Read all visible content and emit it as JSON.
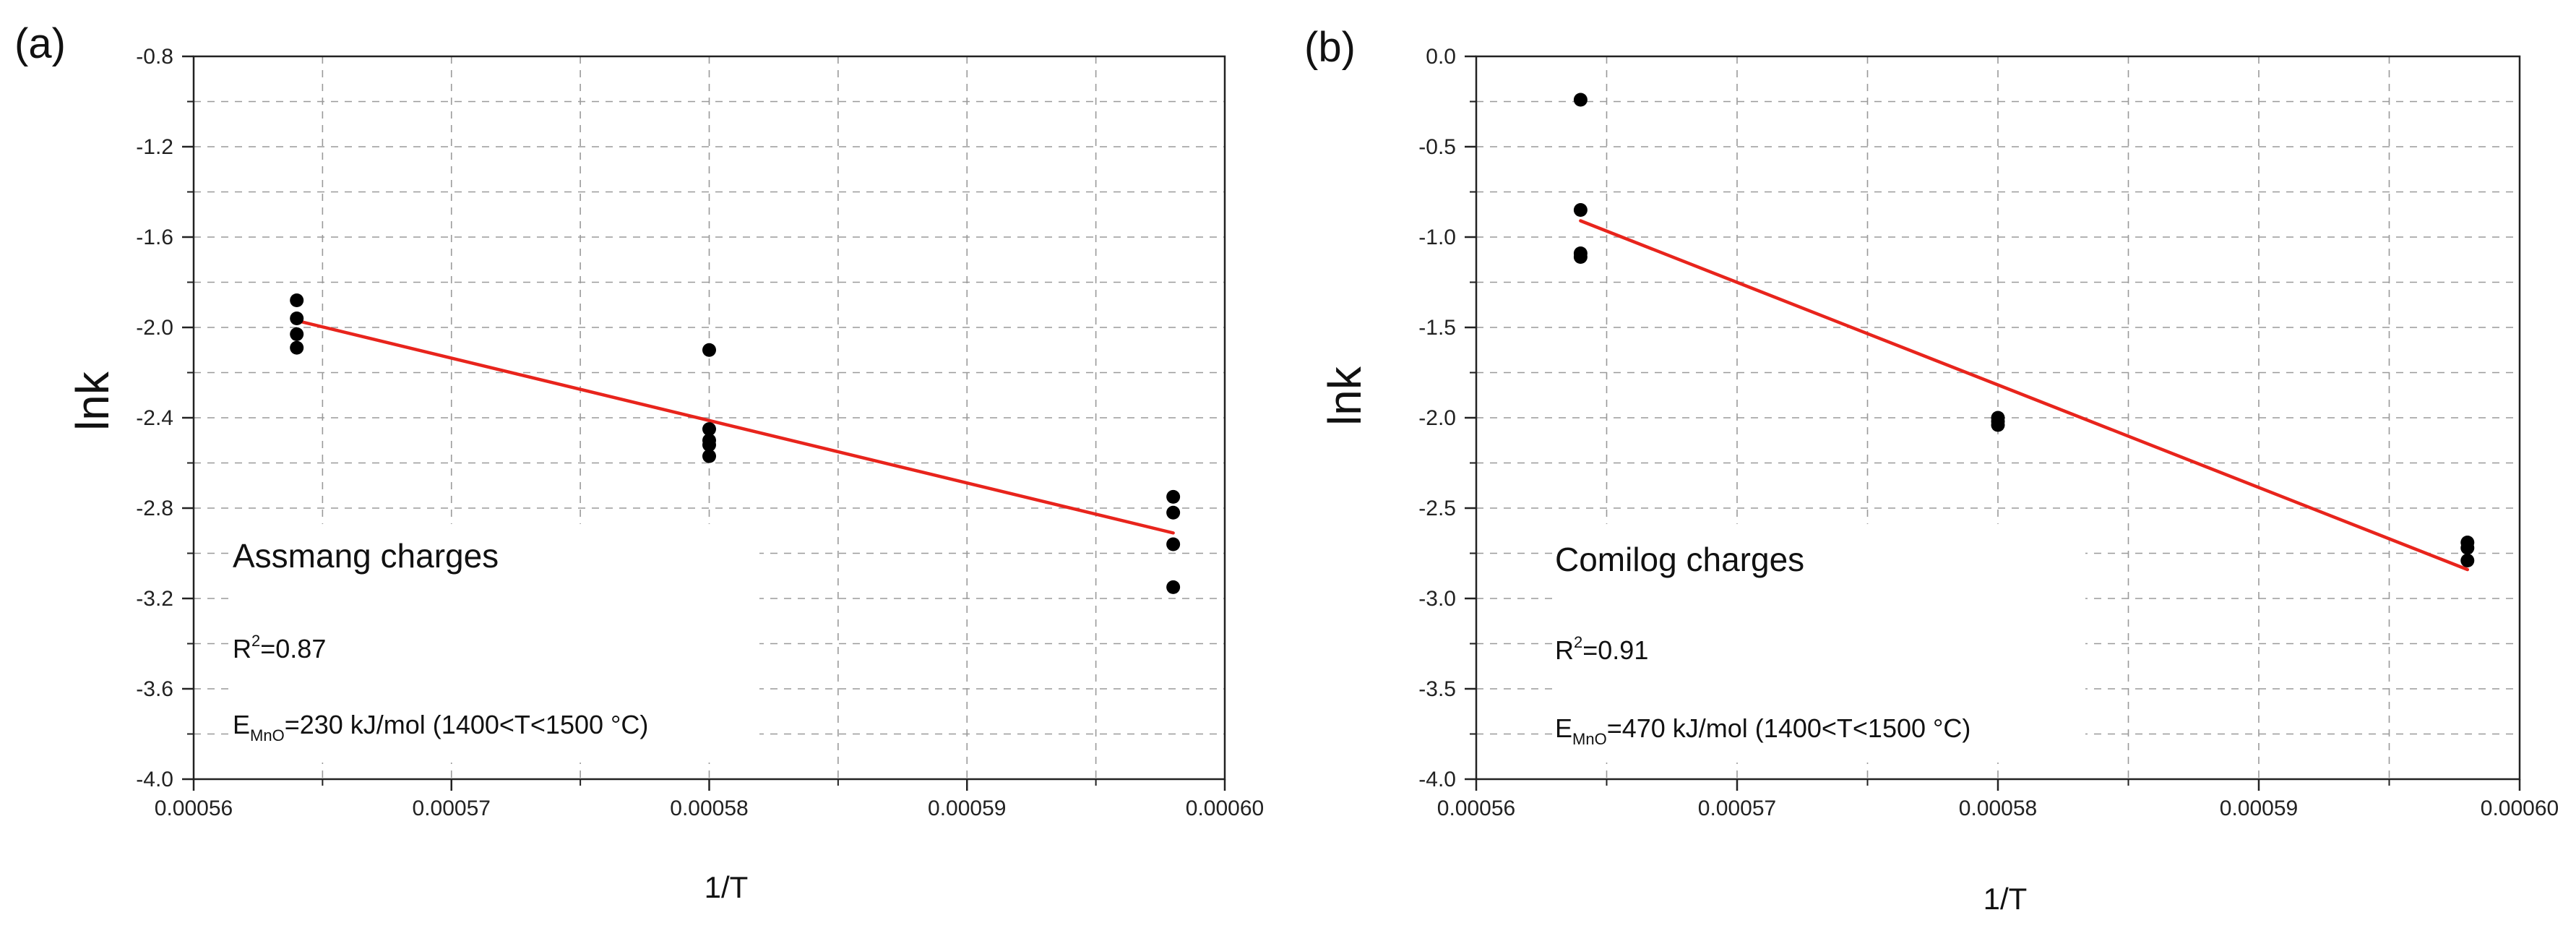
{
  "chart_data": [
    {
      "panel_label": "(a)",
      "type": "scatter",
      "title": "",
      "xlabel": "1/T",
      "ylabel": "lnk",
      "xlim": [
        0.00056,
        0.0006
      ],
      "ylim": [
        -4.0,
        -0.8
      ],
      "xticks": [
        "0.00056",
        "0.00057",
        "0.00058",
        "0.00059",
        "0.00060"
      ],
      "yticks": [
        "-0.8",
        "-1.2",
        "-1.6",
        "-2.0",
        "-2.4",
        "-2.8",
        "-3.2",
        "-3.6",
        "-4.0"
      ],
      "grid": true,
      "series": [
        {
          "name": "data",
          "color": "#000000",
          "x": [
            0.000564,
            0.000564,
            0.000564,
            0.000564,
            0.00058,
            0.00058,
            0.00058,
            0.00058,
            0.00058,
            0.000598,
            0.000598,
            0.000598,
            0.000598
          ],
          "y": [
            -1.88,
            -1.96,
            -2.03,
            -2.09,
            -2.1,
            -2.45,
            -2.5,
            -2.57,
            -2.52,
            -2.75,
            -2.82,
            -2.96,
            -3.15
          ]
        },
        {
          "name": "fit",
          "color": "#e8241c",
          "type": "line",
          "x": [
            0.000564,
            0.000598
          ],
          "y": [
            -1.97,
            -2.91
          ]
        }
      ],
      "annotation": {
        "title": "Assmang charges",
        "r2_base": "R",
        "r2_sup": "2",
        "r2_value": "=0.87",
        "e_base": "E",
        "e_sub": "MnO",
        "e_value": "=230 kJ/mol (1400<T<1500 °C)"
      }
    },
    {
      "panel_label": "(b)",
      "type": "scatter",
      "title": "",
      "xlabel": "1/T",
      "ylabel": "lnk",
      "xlim": [
        0.00056,
        0.0006
      ],
      "ylim": [
        -4.0,
        0.0
      ],
      "xticks": [
        "0.00056",
        "0.00057",
        "0.00058",
        "0.00059",
        "0.00060"
      ],
      "yticks": [
        "0.0",
        "-0.5",
        "-1.0",
        "-1.5",
        "-2.0",
        "-2.5",
        "-3.0",
        "-3.5",
        "-4.0"
      ],
      "grid": true,
      "series": [
        {
          "name": "data",
          "color": "#000000",
          "x": [
            0.000564,
            0.000564,
            0.000564,
            0.000564,
            0.00058,
            0.00058,
            0.00058,
            0.000598,
            0.000598,
            0.000598
          ],
          "y": [
            -0.24,
            -0.85,
            -1.09,
            -1.11,
            -2.0,
            -2.02,
            -2.04,
            -2.69,
            -2.72,
            -2.79
          ],
          "point_labels": []
        },
        {
          "name": "fit",
          "color": "#e8241c",
          "type": "line",
          "x": [
            0.000564,
            0.000598
          ],
          "y": [
            -0.91,
            -2.84
          ]
        }
      ],
      "annotation": {
        "title": "Comilog charges",
        "r2_base": "R",
        "r2_sup": "2",
        "r2_value": "=0.91",
        "e_base": "E",
        "e_sub": "MnO",
        "e_value": "=470 kJ/mol (1400<T<1500 °C)"
      }
    }
  ]
}
